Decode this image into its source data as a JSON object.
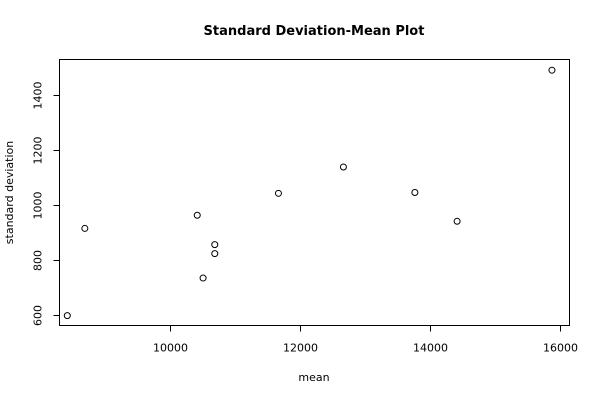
{
  "chart_data": {
    "type": "scatter",
    "title": "Standard Deviation-Mean Plot",
    "xlabel": "mean",
    "ylabel": "standard deviation",
    "xlim": [
      8300,
      16150
    ],
    "ylim": [
      560,
      1530
    ],
    "xticks": [
      10000,
      12000,
      14000,
      16000
    ],
    "yticks": [
      600,
      800,
      1000,
      1200,
      1400
    ],
    "xtick_labels": [
      "10000",
      "12000",
      "14000",
      "16000"
    ],
    "ytick_labels": [
      "600",
      "800",
      "1000",
      "1200",
      "1400"
    ],
    "points": [
      {
        "x": 8420,
        "y": 596
      },
      {
        "x": 8690,
        "y": 914
      },
      {
        "x": 10420,
        "y": 962
      },
      {
        "x": 10510,
        "y": 733
      },
      {
        "x": 10690,
        "y": 822
      },
      {
        "x": 10690,
        "y": 855
      },
      {
        "x": 11670,
        "y": 1042
      },
      {
        "x": 12670,
        "y": 1138
      },
      {
        "x": 13770,
        "y": 1045
      },
      {
        "x": 14420,
        "y": 940
      },
      {
        "x": 15880,
        "y": 1491
      }
    ],
    "grid": false,
    "legend": false
  }
}
